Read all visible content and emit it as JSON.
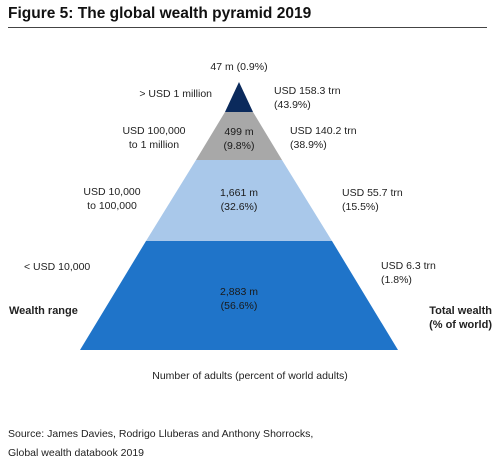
{
  "title": "Figure 5: The global wealth pyramid 2019",
  "top_note": "47 m (0.9%)",
  "tiers": [
    {
      "range_label": "> USD 1 million",
      "adults_line1": "",
      "adults_line2": "",
      "wealth_line1": "USD 158.3 trn",
      "wealth_line2": "(43.9%)",
      "color": "#0b2a5c"
    },
    {
      "range_label_line1": "USD 100,000",
      "range_label_line2": "to 1 million",
      "adults_line1": "499 m",
      "adults_line2": "(9.8%)",
      "wealth_line1": "USD 140.2 trn",
      "wealth_line2": "(38.9%)",
      "color": "#a8a8a8"
    },
    {
      "range_label_line1": "USD 10,000",
      "range_label_line2": "to 100,000",
      "adults_line1": "1,661 m",
      "adults_line2": "(32.6%)",
      "wealth_line1": "USD 55.7 trn",
      "wealth_line2": "(15.5%)",
      "color": "#a9c8ea"
    },
    {
      "range_label": "< USD 10,000",
      "adults_line1": "2,883 m",
      "adults_line2": "(56.6%)",
      "wealth_line1": "USD 6.3 trn",
      "wealth_line2": "(1.8%)",
      "color": "#1f74c9"
    }
  ],
  "left_heading": "Wealth range",
  "right_heading_line1": "Total wealth",
  "right_heading_line2": "(% of world)",
  "x_caption": "Number of adults (percent of world adults)",
  "source_line1": "Source: James Davies, Rodrigo Lluberas and Anthony Shorrocks,",
  "source_line2": "Global wealth databook 2019"
}
